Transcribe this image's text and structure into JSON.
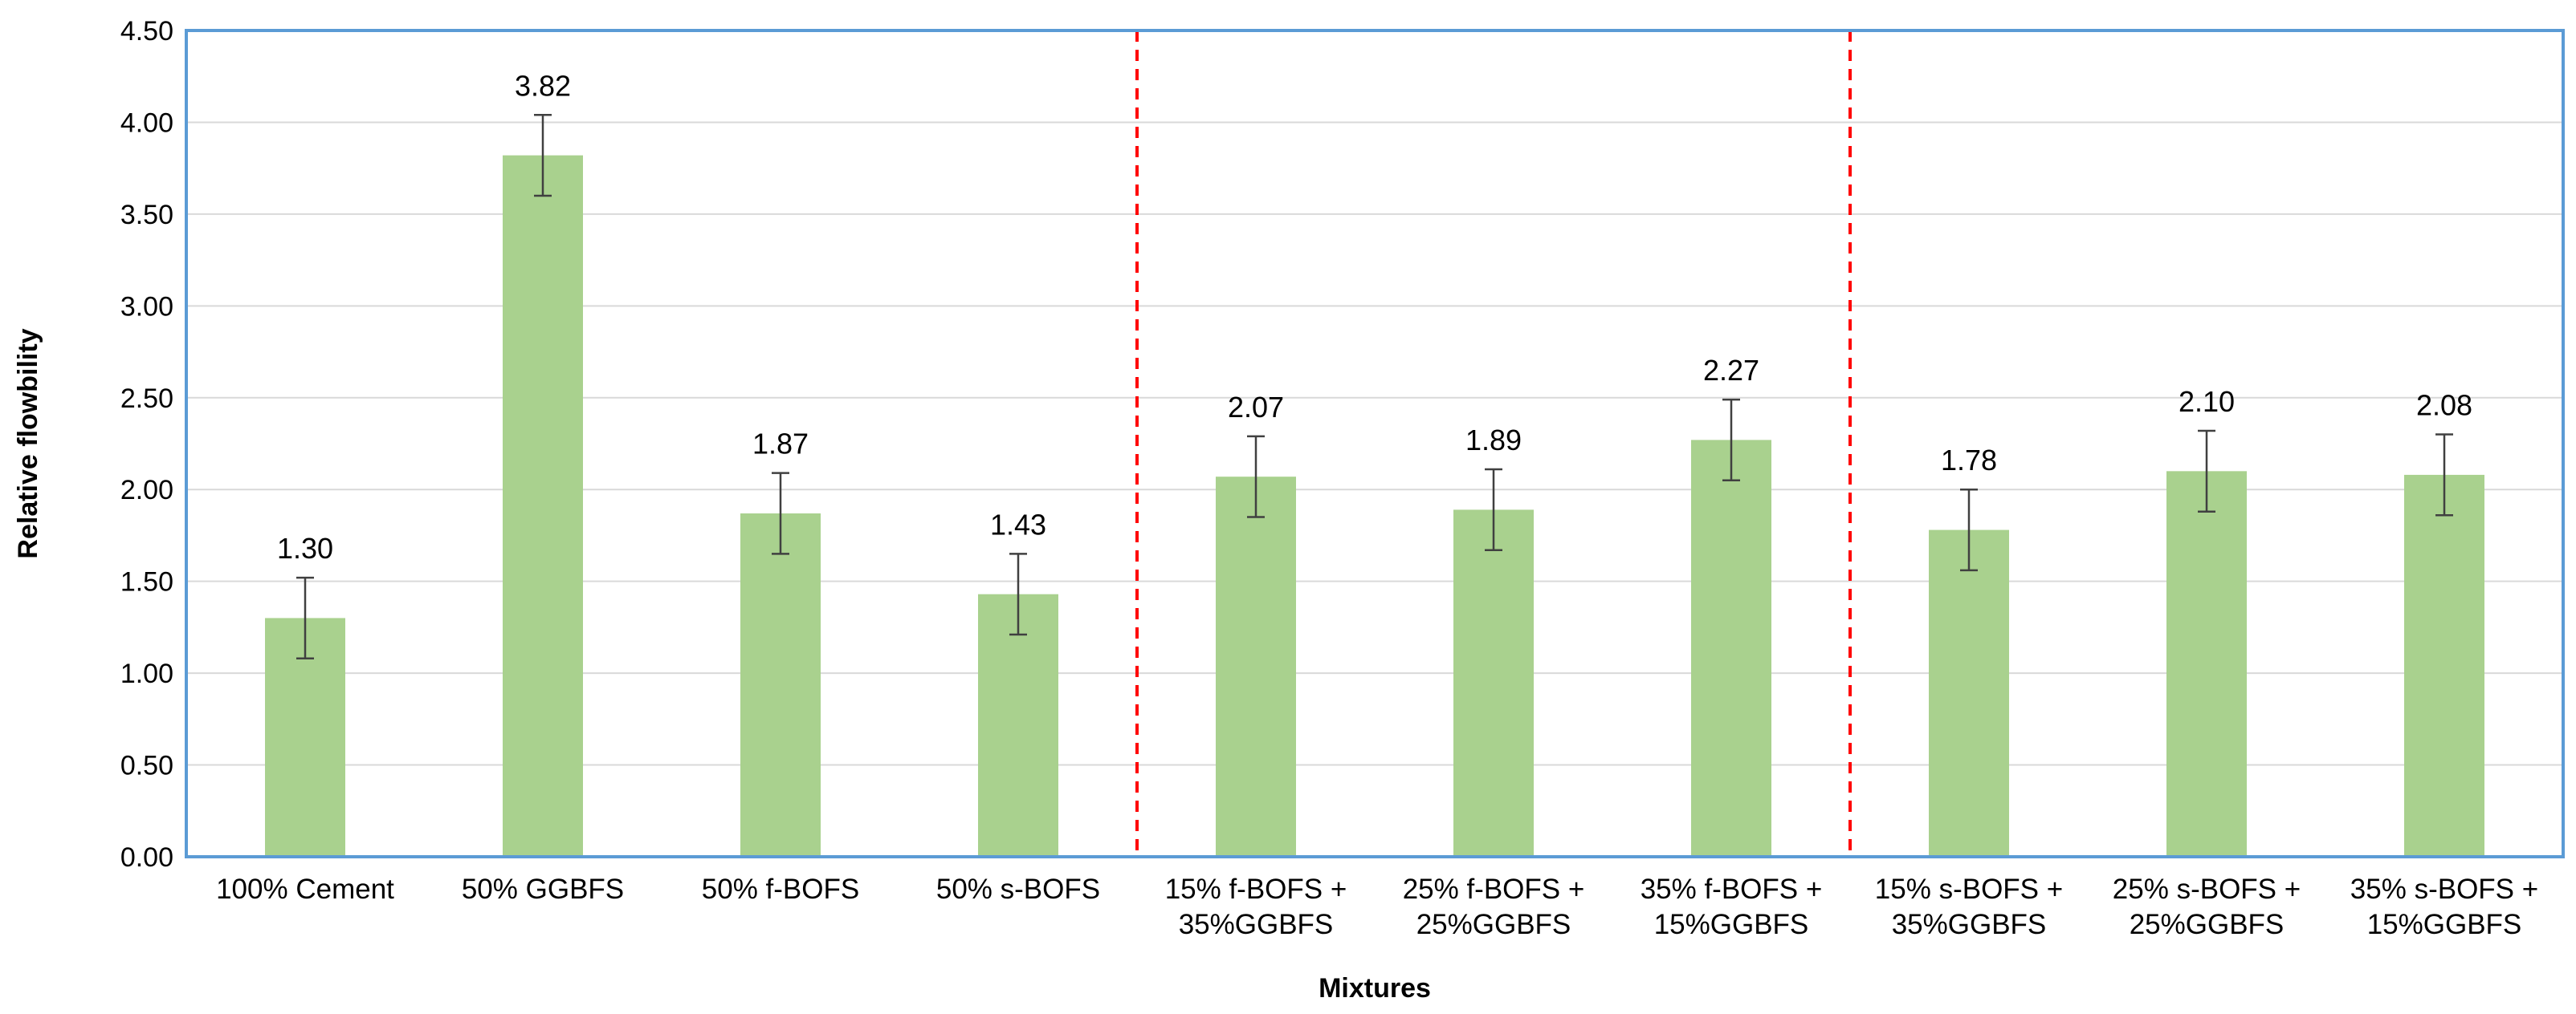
{
  "chart_data": {
    "type": "bar",
    "categories": [
      [
        "100% Cement"
      ],
      [
        "50% GGBFS"
      ],
      [
        "50% f-BOFS"
      ],
      [
        "50% s-BOFS"
      ],
      [
        "15% f-BOFS +",
        "35%GGBFS"
      ],
      [
        "25% f-BOFS +",
        "25%GGBFS"
      ],
      [
        "35% f-BOFS +",
        "15%GGBFS"
      ],
      [
        "15% s-BOFS +",
        "35%GGBFS"
      ],
      [
        "25% s-BOFS +",
        "25%GGBFS"
      ],
      [
        "35% s-BOFS +",
        "15%GGBFS"
      ]
    ],
    "values": [
      1.3,
      3.82,
      1.87,
      1.43,
      2.07,
      1.89,
      2.27,
      1.78,
      2.1,
      2.08
    ],
    "value_labels": [
      "1.30",
      "3.82",
      "1.87",
      "1.43",
      "2.07",
      "1.89",
      "2.27",
      "1.78",
      "2.10",
      "2.08"
    ],
    "error": [
      0.22,
      0.22,
      0.22,
      0.22,
      0.22,
      0.22,
      0.22,
      0.22,
      0.22,
      0.22
    ],
    "xlabel": "Mixtures",
    "ylabel": "Relative flowbility",
    "ylim": [
      0,
      4.5
    ],
    "yticks": [
      "0.00",
      "0.50",
      "1.00",
      "1.50",
      "2.00",
      "2.50",
      "3.00",
      "3.50",
      "4.00",
      "4.50"
    ],
    "grid": true,
    "group_dividers_after": [
      4,
      7
    ],
    "colors": {
      "bar": "#a9d18e",
      "frame": "#5b9bd5",
      "divider": "#ff0000",
      "grid": "#d9d9d9",
      "error_bar": "#404040"
    }
  }
}
